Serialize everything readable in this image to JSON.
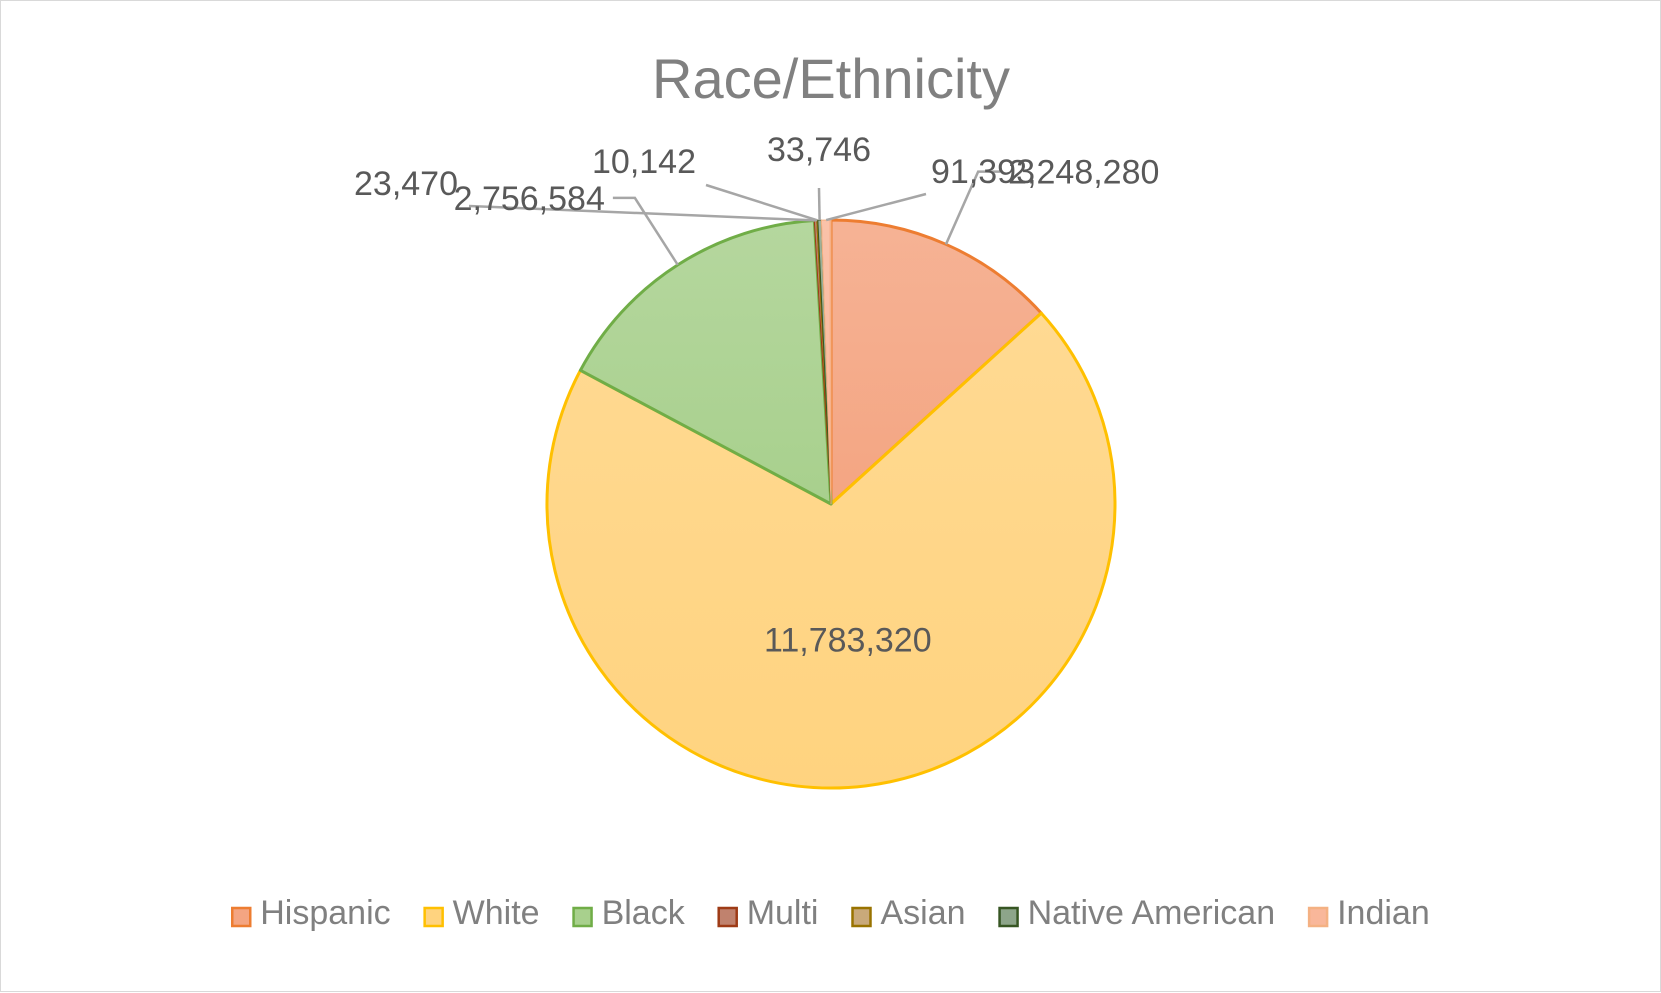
{
  "chart_data": {
    "type": "pie",
    "title": "Race/Ethnicity",
    "legend_position": "bottom",
    "categories": [
      "Hispanic",
      "White",
      "Black",
      "Multi",
      "Asian",
      "Native American",
      "Indian"
    ],
    "values": [
      2248280,
      11783320,
      2756584,
      23470,
      10142,
      33746,
      91393
    ],
    "value_labels": [
      "2,248,280",
      "11,783,320",
      "2,756,584",
      "23,470",
      "10,142",
      "33,746",
      "91,393"
    ],
    "slice_colors": [
      "#f4a582",
      "#ffd37f",
      "#a8d08d",
      "#c0826e",
      "#c9a97a",
      "#8da58a",
      "#f9b79a"
    ],
    "slice_edge_colors": [
      "#ed7d31",
      "#ffc000",
      "#70ad47",
      "#9e3b16",
      "#997300",
      "#375623",
      "#f4b183"
    ]
  }
}
